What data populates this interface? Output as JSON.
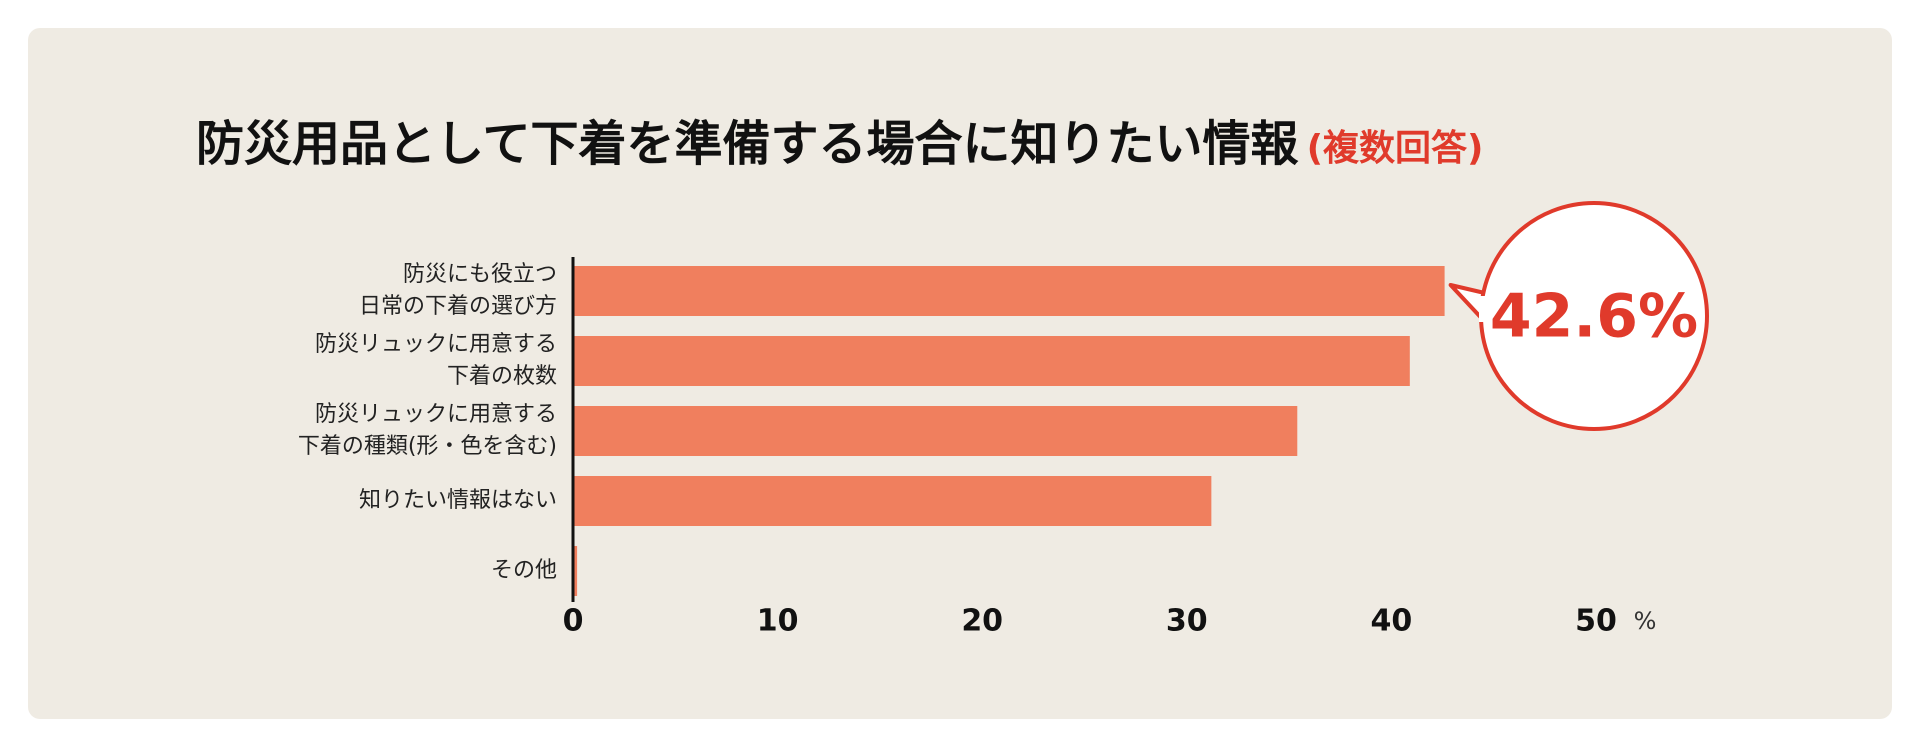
{
  "chart_data": {
    "type": "barh",
    "title": "防災用品として下着を準備する場合に知りたい情報",
    "subtitle": "(複数回答)",
    "categories": [
      [
        "防災にも役立つ",
        "日常の下着の選び方"
      ],
      [
        "防災リュックに用意する",
        "下着の枚数"
      ],
      [
        "防災リュックに用意する",
        "下着の種類(形・色を含む)"
      ],
      [
        "知りたい情報はない"
      ],
      [
        "その他"
      ]
    ],
    "values": [
      42.6,
      40.9,
      35.4,
      31.2,
      0.2
    ],
    "value_labels": [
      "42.6%",
      null,
      null,
      null,
      null
    ],
    "color": "#f07f5e",
    "xlim": [
      0,
      50
    ],
    "xticks": [
      0,
      10,
      20,
      30,
      40,
      50
    ],
    "x_unit": "%",
    "grid": false
  }
}
